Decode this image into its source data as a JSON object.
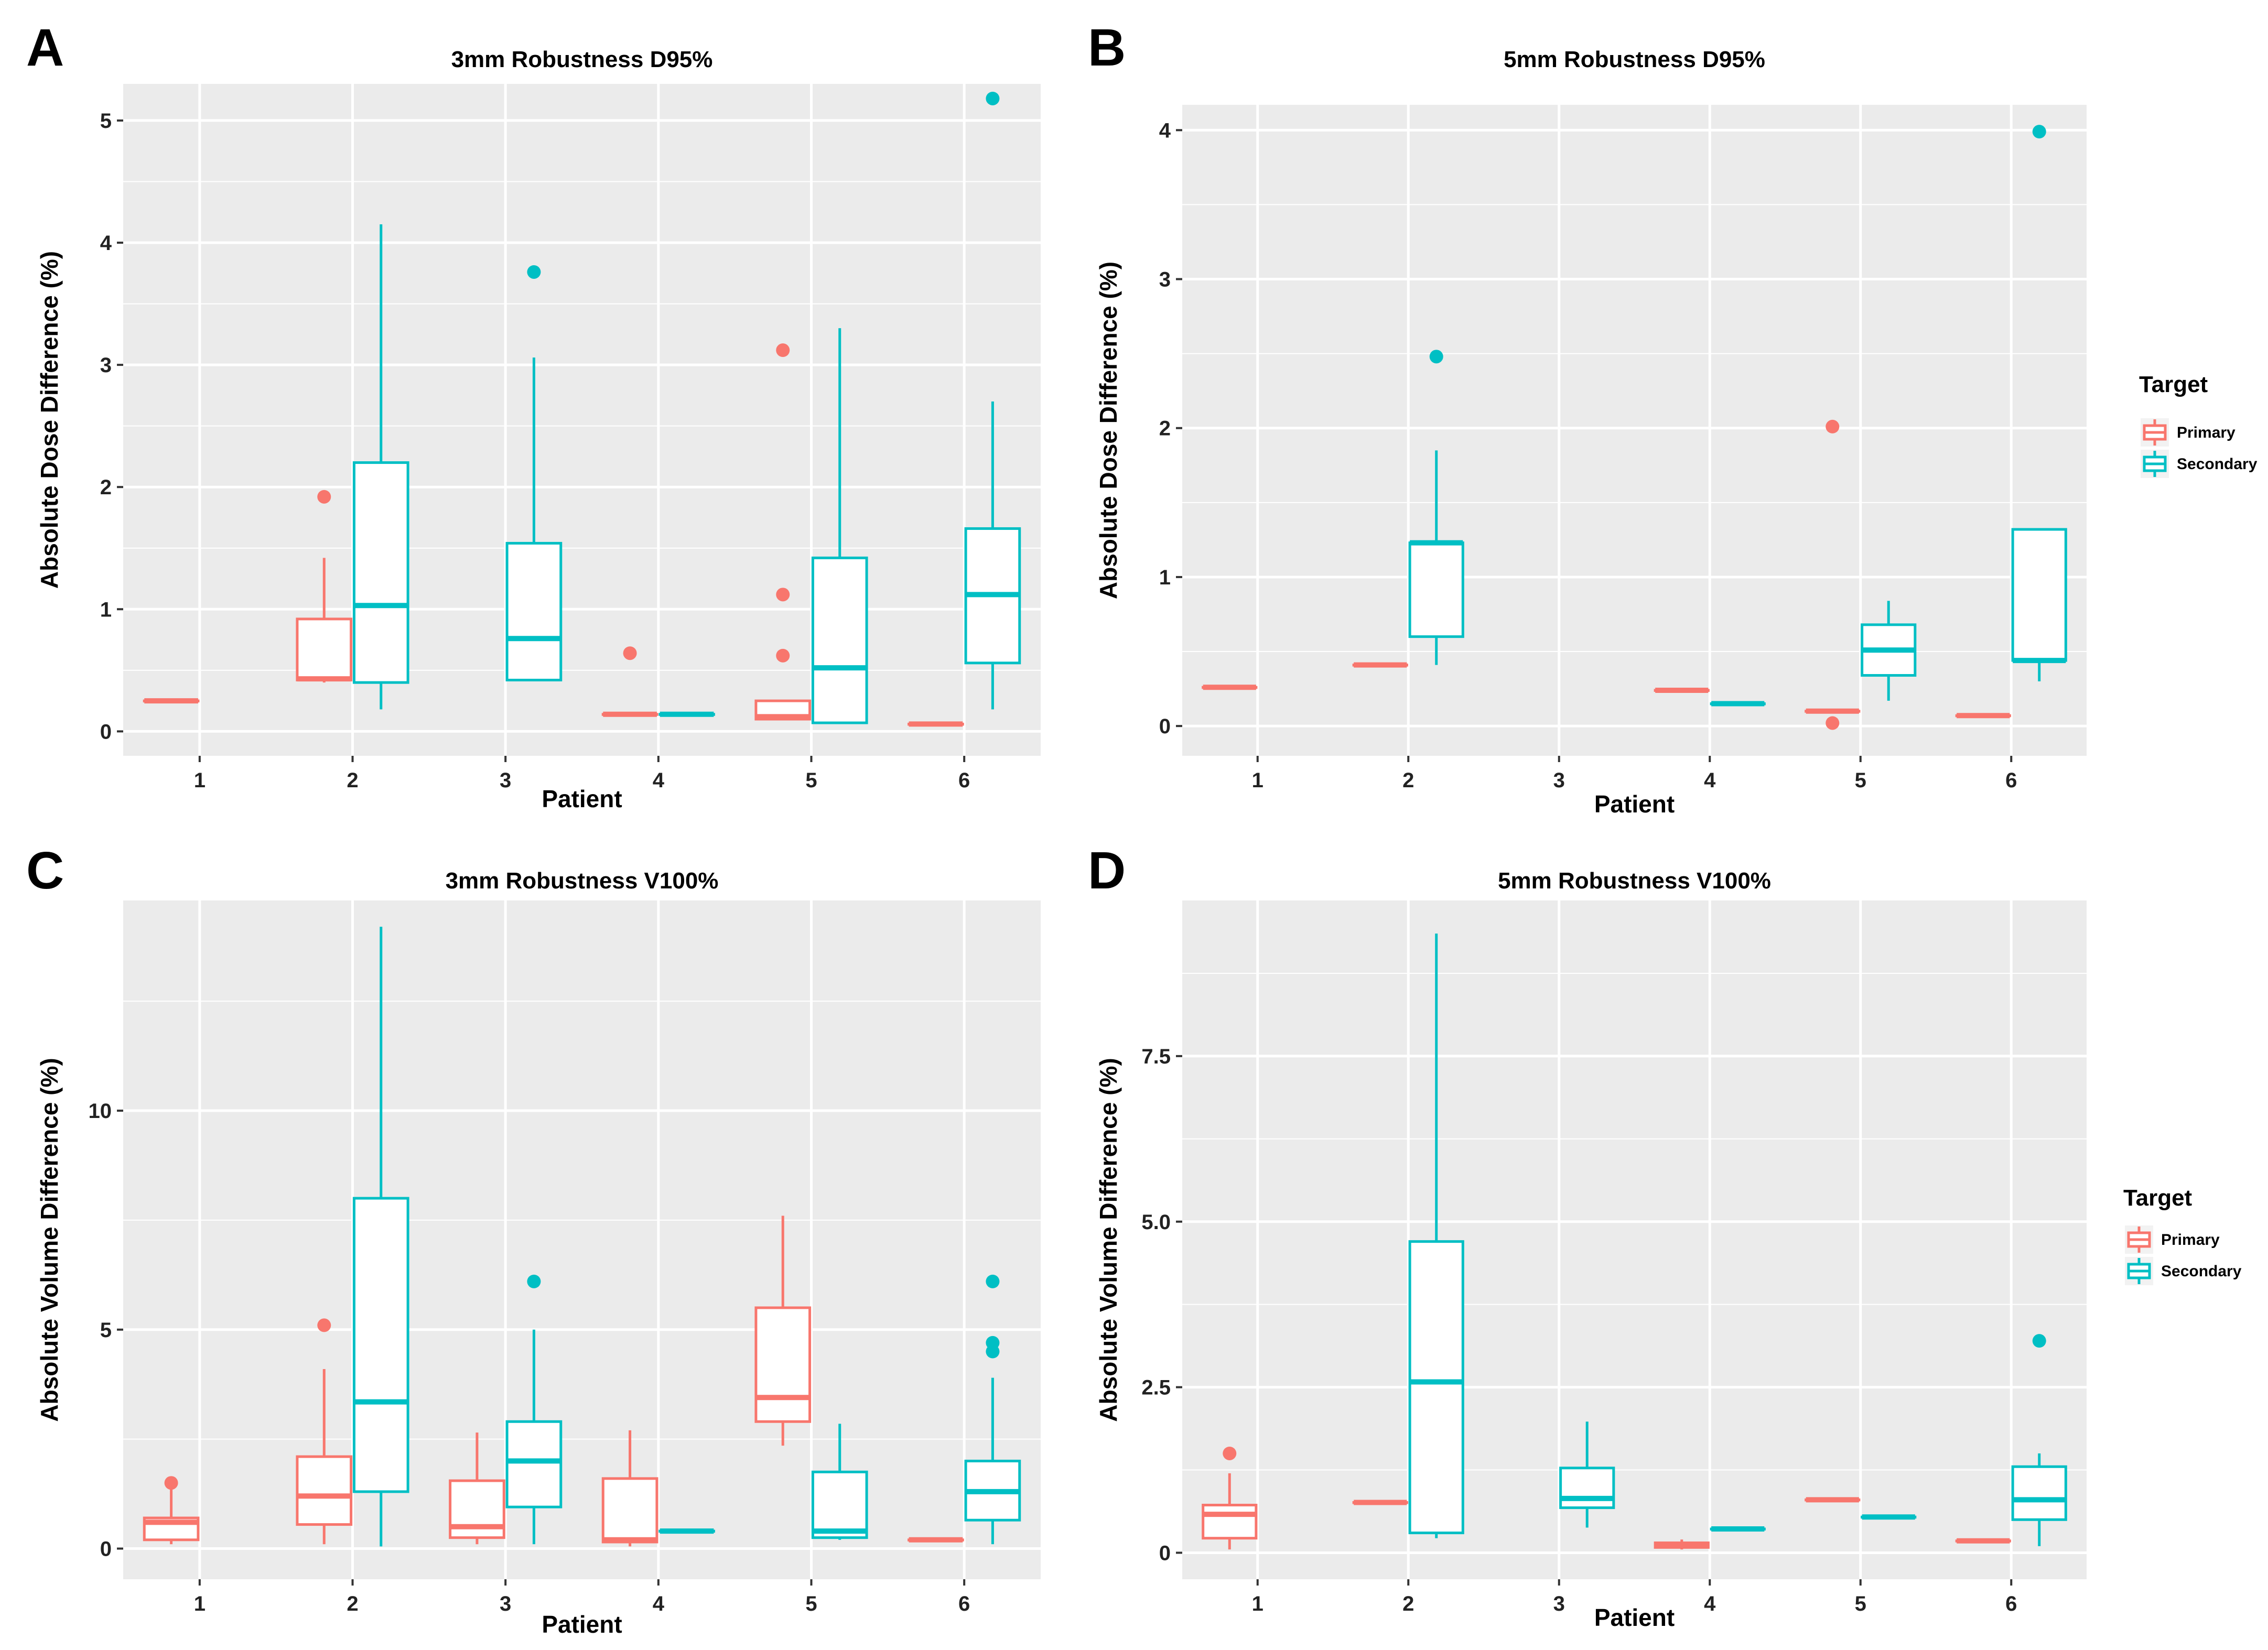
{
  "colors": {
    "primary": "#F8766D",
    "secondary": "#00BFC4",
    "panel_bg": "#EBEBEB",
    "grid": "#FFFFFF"
  },
  "legend": {
    "title": "Target",
    "primary_label": "Primary",
    "secondary_label": "Secondary"
  },
  "chart_data": [
    {
      "type": "box",
      "letter": "A",
      "title": "3mm Robustness D95%",
      "xlabel": "Patient",
      "ylabel": "Absolute Dose Difference (%)",
      "categories": [
        "1",
        "2",
        "3",
        "4",
        "5",
        "6"
      ],
      "ylim": [
        -0.2,
        5.3
      ],
      "yticks": [
        0,
        1,
        2,
        3,
        4,
        5
      ],
      "ytick_labels": [
        "0",
        "1",
        "2",
        "3",
        "4",
        "5"
      ],
      "series": [
        {
          "name": "Primary",
          "boxes": [
            {
              "x": "1",
              "min": 0.25,
              "q1": 0.25,
              "median": 0.25,
              "q3": 0.25,
              "max": 0.25,
              "outliers": []
            },
            {
              "x": "2",
              "min": 0.4,
              "q1": 0.42,
              "median": 0.43,
              "q3": 0.92,
              "max": 1.42,
              "outliers": [
                1.92
              ]
            },
            {
              "x": "4",
              "min": 0.14,
              "q1": 0.14,
              "median": 0.14,
              "q3": 0.14,
              "max": 0.14,
              "outliers": [
                0.64
              ]
            },
            {
              "x": "5",
              "min": 0.1,
              "q1": 0.1,
              "median": 0.12,
              "q3": 0.25,
              "max": 0.25,
              "outliers": [
                0.62,
                1.12,
                3.12
              ]
            },
            {
              "x": "6",
              "min": 0.06,
              "q1": 0.06,
              "median": 0.06,
              "q3": 0.06,
              "max": 0.06,
              "outliers": []
            }
          ]
        },
        {
          "name": "Secondary",
          "boxes": [
            {
              "x": "2",
              "min": 0.18,
              "q1": 0.4,
              "median": 1.03,
              "q3": 2.2,
              "max": 4.15,
              "outliers": []
            },
            {
              "x": "3",
              "min": 0.42,
              "q1": 0.42,
              "median": 0.76,
              "q3": 1.54,
              "max": 3.06,
              "outliers": [
                3.76
              ]
            },
            {
              "x": "4",
              "min": 0.14,
              "q1": 0.14,
              "median": 0.14,
              "q3": 0.14,
              "max": 0.14,
              "outliers": []
            },
            {
              "x": "5",
              "min": 0.07,
              "q1": 0.07,
              "median": 0.52,
              "q3": 1.42,
              "max": 3.3,
              "outliers": []
            },
            {
              "x": "6",
              "min": 0.18,
              "q1": 0.56,
              "median": 1.12,
              "q3": 1.66,
              "max": 2.7,
              "outliers": [
                5.18
              ]
            }
          ]
        }
      ]
    },
    {
      "type": "box",
      "letter": "B",
      "title": "5mm Robustness D95%",
      "xlabel": "Patient",
      "ylabel": "Absolute Dose Difference (%)",
      "categories": [
        "1",
        "2",
        "3",
        "4",
        "5",
        "6"
      ],
      "ylim": [
        -0.2,
        4.17
      ],
      "yticks": [
        0,
        1,
        2,
        3,
        4
      ],
      "ytick_labels": [
        "0",
        "1",
        "2",
        "3",
        "4"
      ],
      "series": [
        {
          "name": "Primary",
          "boxes": [
            {
              "x": "1",
              "min": 0.26,
              "q1": 0.26,
              "median": 0.26,
              "q3": 0.26,
              "max": 0.26,
              "outliers": []
            },
            {
              "x": "2",
              "min": 0.41,
              "q1": 0.41,
              "median": 0.41,
              "q3": 0.41,
              "max": 0.41,
              "outliers": []
            },
            {
              "x": "4",
              "min": 0.24,
              "q1": 0.24,
              "median": 0.24,
              "q3": 0.24,
              "max": 0.24,
              "outliers": []
            },
            {
              "x": "5",
              "min": 0.1,
              "q1": 0.1,
              "median": 0.1,
              "q3": 0.1,
              "max": 0.1,
              "outliers": [
                0.02,
                2.01
              ]
            },
            {
              "x": "6",
              "min": 0.07,
              "q1": 0.07,
              "median": 0.07,
              "q3": 0.07,
              "max": 0.07,
              "outliers": []
            }
          ]
        },
        {
          "name": "Secondary",
          "boxes": [
            {
              "x": "2",
              "min": 0.41,
              "q1": 0.6,
              "median": 1.23,
              "q3": 1.23,
              "max": 1.85,
              "outliers": [
                2.48
              ]
            },
            {
              "x": "4",
              "min": 0.15,
              "q1": 0.15,
              "median": 0.15,
              "q3": 0.15,
              "max": 0.15,
              "outliers": []
            },
            {
              "x": "5",
              "min": 0.17,
              "q1": 0.34,
              "median": 0.51,
              "q3": 0.68,
              "max": 0.84,
              "outliers": []
            },
            {
              "x": "6",
              "min": 0.3,
              "q1": 0.44,
              "median": 0.44,
              "q3": 1.32,
              "max": 1.32,
              "outliers": [
                3.99
              ]
            }
          ]
        }
      ]
    },
    {
      "type": "box",
      "letter": "C",
      "title": "3mm Robustness V100%",
      "xlabel": "Patient",
      "ylabel": "Absolute Volume Difference (%)",
      "categories": [
        "1",
        "2",
        "3",
        "4",
        "5",
        "6"
      ],
      "ylim": [
        -0.7,
        14.8
      ],
      "yticks": [
        0,
        5,
        10
      ],
      "ytick_labels": [
        "0",
        "5",
        "10"
      ],
      "series": [
        {
          "name": "Primary",
          "boxes": [
            {
              "x": "1",
              "min": 0.1,
              "q1": 0.2,
              "median": 0.6,
              "q3": 0.7,
              "max": 1.5,
              "outliers": [
                1.5
              ]
            },
            {
              "x": "2",
              "min": 0.1,
              "q1": 0.55,
              "median": 1.2,
              "q3": 2.1,
              "max": 4.1,
              "outliers": [
                5.1
              ]
            },
            {
              "x": "3",
              "min": 0.1,
              "q1": 0.25,
              "median": 0.5,
              "q3": 1.55,
              "max": 2.65,
              "outliers": []
            },
            {
              "x": "4",
              "min": 0.05,
              "q1": 0.15,
              "median": 0.2,
              "q3": 1.6,
              "max": 2.7,
              "outliers": []
            },
            {
              "x": "5",
              "min": 2.35,
              "q1": 2.9,
              "median": 3.45,
              "q3": 5.5,
              "max": 7.6,
              "outliers": []
            },
            {
              "x": "6",
              "min": 0.2,
              "q1": 0.2,
              "median": 0.2,
              "q3": 0.2,
              "max": 0.2,
              "outliers": []
            }
          ]
        },
        {
          "name": "Secondary",
          "boxes": [
            {
              "x": "2",
              "min": 0.05,
              "q1": 1.3,
              "median": 3.35,
              "q3": 8.0,
              "max": 14.2,
              "outliers": []
            },
            {
              "x": "3",
              "min": 0.1,
              "q1": 0.95,
              "median": 2.0,
              "q3": 2.9,
              "max": 5.0,
              "outliers": [
                6.1
              ]
            },
            {
              "x": "4",
              "min": 0.4,
              "q1": 0.4,
              "median": 0.4,
              "q3": 0.4,
              "max": 0.4,
              "outliers": []
            },
            {
              "x": "5",
              "min": 0.2,
              "q1": 0.25,
              "median": 0.4,
              "q3": 1.75,
              "max": 2.85,
              "outliers": []
            },
            {
              "x": "6",
              "min": 0.1,
              "q1": 0.65,
              "median": 1.3,
              "q3": 2.0,
              "max": 3.9,
              "outliers": [
                4.5,
                4.7,
                6.1
              ]
            }
          ]
        }
      ]
    },
    {
      "type": "box",
      "letter": "D",
      "title": "5mm Robustness V100%",
      "xlabel": "Patient",
      "ylabel": "Absolute Volume Difference (%)",
      "categories": [
        "1",
        "2",
        "3",
        "4",
        "5",
        "6"
      ],
      "ylim": [
        -0.4,
        9.85
      ],
      "yticks": [
        0,
        2.5,
        5.0,
        7.5
      ],
      "ytick_labels": [
        "0",
        "2.5",
        "5.0",
        "7.5"
      ],
      "series": [
        {
          "name": "Primary",
          "boxes": [
            {
              "x": "1",
              "min": 0.05,
              "q1": 0.22,
              "median": 0.58,
              "q3": 0.72,
              "max": 1.2,
              "outliers": [
                1.5
              ]
            },
            {
              "x": "2",
              "min": 0.76,
              "q1": 0.76,
              "median": 0.76,
              "q3": 0.76,
              "max": 0.76,
              "outliers": []
            },
            {
              "x": "4",
              "min": 0.05,
              "q1": 0.08,
              "median": 0.12,
              "q3": 0.15,
              "max": 0.2,
              "outliers": []
            },
            {
              "x": "5",
              "min": 0.8,
              "q1": 0.8,
              "median": 0.8,
              "q3": 0.8,
              "max": 0.8,
              "outliers": []
            },
            {
              "x": "6",
              "min": 0.18,
              "q1": 0.18,
              "median": 0.18,
              "q3": 0.18,
              "max": 0.18,
              "outliers": []
            }
          ]
        },
        {
          "name": "Secondary",
          "boxes": [
            {
              "x": "2",
              "min": 0.22,
              "q1": 0.3,
              "median": 2.58,
              "q3": 4.7,
              "max": 9.35,
              "outliers": []
            },
            {
              "x": "3",
              "min": 0.38,
              "q1": 0.68,
              "median": 0.82,
              "q3": 1.28,
              "max": 1.98,
              "outliers": []
            },
            {
              "x": "4",
              "min": 0.36,
              "q1": 0.36,
              "median": 0.36,
              "q3": 0.36,
              "max": 0.36,
              "outliers": []
            },
            {
              "x": "5",
              "min": 0.54,
              "q1": 0.54,
              "median": 0.54,
              "q3": 0.54,
              "max": 0.54,
              "outliers": []
            },
            {
              "x": "6",
              "min": 0.1,
              "q1": 0.5,
              "median": 0.8,
              "q3": 1.3,
              "max": 1.5,
              "outliers": [
                3.2
              ]
            }
          ]
        }
      ]
    }
  ]
}
